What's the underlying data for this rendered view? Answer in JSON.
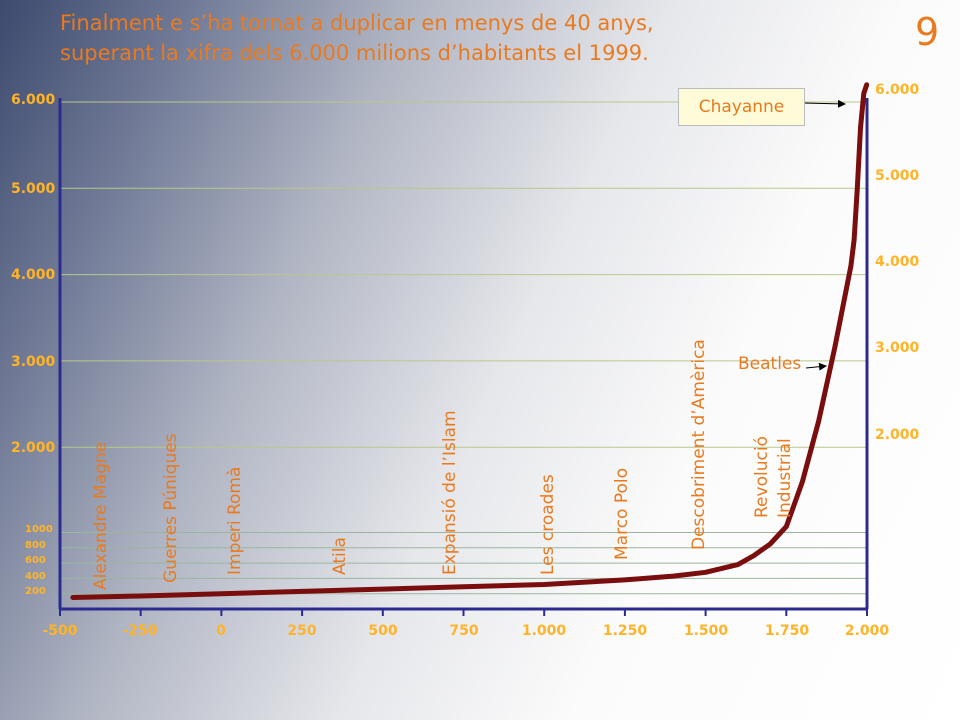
{
  "slide": {
    "title_line1": "Finalment e s’ha tornat a duplicar en menys de 40 anys,",
    "title_line2": "superant la xifra dels 6.000 milions d’habitants el 1999.",
    "number": "9"
  },
  "chart_data": {
    "type": "line",
    "title": "Finalment e s’ha tornat a duplicar en menys de 40 anys, superant la xifra dels 6.000 milions d’habitants el 1999.",
    "xlabel": "",
    "ylabel": "",
    "xlim": [
      -500,
      2000
    ],
    "ylim": [
      0,
      6300
    ],
    "x_ticks": [
      "-500",
      "-250",
      "0",
      "250",
      "500",
      "750",
      "1.000",
      "1.250",
      "1.500",
      "1.750",
      "2.000"
    ],
    "y_ticks_left": [
      "6.000",
      "5.000",
      "4.000",
      "3.000",
      "2.000",
      "1000",
      "800",
      "600",
      "400",
      "200"
    ],
    "y_ticks_right": [
      "6.000",
      "5.000",
      "4.000",
      "3.000",
      "2.000"
    ],
    "grid": "horizontal",
    "series": [
      {
        "color": "#7a0e0e",
        "x": [
          -460,
          -250,
          0,
          250,
          500,
          750,
          1000,
          1250,
          1400,
          1500,
          1600,
          1650,
          1700,
          1750,
          1800,
          1850,
          1900,
          1950,
          1960,
          1970,
          1980,
          1990,
          1999
        ],
        "y": [
          150,
          170,
          200,
          230,
          260,
          290,
          320,
          380,
          430,
          480,
          580,
          700,
          850,
          1080,
          1600,
          2300,
          3150,
          4100,
          4400,
          5000,
          5700,
          6100,
          6200
        ]
      }
    ],
    "annotations": [
      {
        "text": "Alexandre Magne",
        "x": -375
      },
      {
        "text": "Guerres Púniques",
        "x": -165
      },
      {
        "text": "Imperi Romà",
        "x": 45
      },
      {
        "text": "Atila",
        "x": 390
      },
      {
        "text": "Expansió de l’Islam",
        "x": 720
      },
      {
        "text": "Les croades",
        "x": 1010
      },
      {
        "text": "Marco Polo",
        "x": 1270
      },
      {
        "text": "Descobriment d’Amèrica",
        "x": 1525
      },
      {
        "text": "Revolució",
        "x": 1740
      },
      {
        "text": "Industrial",
        "x": 1810
      },
      {
        "text": "Beatles",
        "x": 1890,
        "y": 2850
      },
      {
        "text": "Chayanne",
        "x": 1990,
        "y": 6000
      }
    ]
  }
}
